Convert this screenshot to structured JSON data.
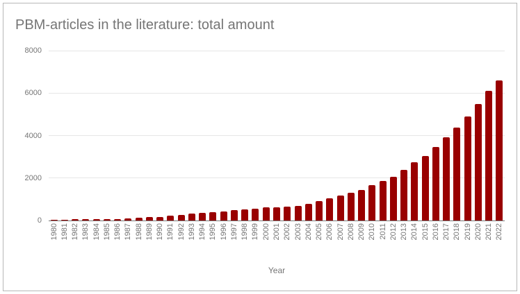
{
  "chart_data": {
    "type": "bar",
    "title": "PBM-articles in the literature: total amount",
    "xlabel": "Year",
    "ylabel": "",
    "categories": [
      "1980",
      "1981",
      "1982",
      "1983",
      "1984",
      "1985",
      "1986",
      "1987",
      "1988",
      "1989",
      "1990",
      "1991",
      "1992",
      "1993",
      "1994",
      "1995",
      "1996",
      "1997",
      "1998",
      "1999",
      "2000",
      "2001",
      "2002",
      "2003",
      "2004",
      "2005",
      "2006",
      "2007",
      "2008",
      "2009",
      "2010",
      "2011",
      "2012",
      "2013",
      "2014",
      "2015",
      "2016",
      "2017",
      "2018",
      "2019",
      "2020",
      "2021",
      "2022"
    ],
    "values": [
      40,
      45,
      50,
      55,
      60,
      65,
      70,
      95,
      120,
      155,
      175,
      240,
      265,
      320,
      370,
      395,
      420,
      480,
      525,
      550,
      615,
      630,
      665,
      700,
      800,
      930,
      1060,
      1170,
      1290,
      1450,
      1650,
      1850,
      2070,
      2370,
      2730,
      3030,
      3460,
      3920,
      4390,
      4910,
      5490,
      6110,
      6580
    ],
    "ylim": [
      0,
      8000
    ],
    "yticks": [
      0,
      2000,
      4000,
      6000,
      8000
    ],
    "grid": true,
    "legend": "none",
    "colors": {
      "bar": "#990000",
      "text": "#757575",
      "gridline": "#e6e6e6",
      "axis_line": "#757575",
      "border": "#b7b7b7",
      "background": "#ffffff"
    }
  }
}
